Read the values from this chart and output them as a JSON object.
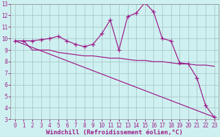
{
  "line1_x": [
    0,
    1,
    2,
    3,
    4,
    5,
    6,
    7,
    8,
    9,
    10,
    11,
    12,
    13,
    14,
    15,
    16,
    17,
    18,
    19,
    20,
    21,
    22,
    23
  ],
  "line1_y": [
    9.8,
    9.8,
    9.8,
    9.9,
    10.0,
    10.2,
    9.8,
    9.5,
    9.3,
    9.5,
    10.4,
    11.6,
    9.0,
    11.9,
    12.2,
    13.1,
    12.3,
    10.0,
    9.8,
    7.9,
    7.8,
    6.6,
    4.2,
    3.2
  ],
  "line2_x": [
    0,
    1,
    2,
    3,
    4,
    5,
    6,
    7,
    8,
    9,
    10,
    11,
    12,
    13,
    14,
    15,
    16,
    17,
    18,
    19,
    20,
    21,
    22,
    23
  ],
  "line2_y": [
    9.8,
    9.8,
    9.0,
    9.0,
    9.0,
    8.8,
    8.7,
    8.6,
    8.5,
    8.5,
    8.4,
    8.3,
    8.3,
    8.2,
    8.1,
    8.1,
    8.0,
    8.0,
    7.9,
    7.8,
    7.8,
    7.7,
    7.7,
    7.6
  ],
  "line3_x": [
    0,
    23
  ],
  "line3_y": [
    9.8,
    3.2
  ],
  "line_color": "#9b1d8a",
  "bg_color": "#cff0f0",
  "grid_color": "#a8c8c8",
  "xlabel": "Windchill (Refroidissement éolien,°C)",
  "xlim": [
    -0.5,
    23.5
  ],
  "ylim": [
    3,
    13
  ],
  "yticks": [
    3,
    4,
    5,
    6,
    7,
    8,
    9,
    10,
    11,
    12,
    13
  ],
  "xticks": [
    0,
    1,
    2,
    3,
    4,
    5,
    6,
    7,
    8,
    9,
    10,
    11,
    12,
    13,
    14,
    15,
    16,
    17,
    18,
    19,
    20,
    21,
    22,
    23
  ],
  "marker": "+",
  "markersize": 4,
  "linewidth": 0.9,
  "xlabel_fontsize": 6.5,
  "tick_fontsize": 5.5
}
